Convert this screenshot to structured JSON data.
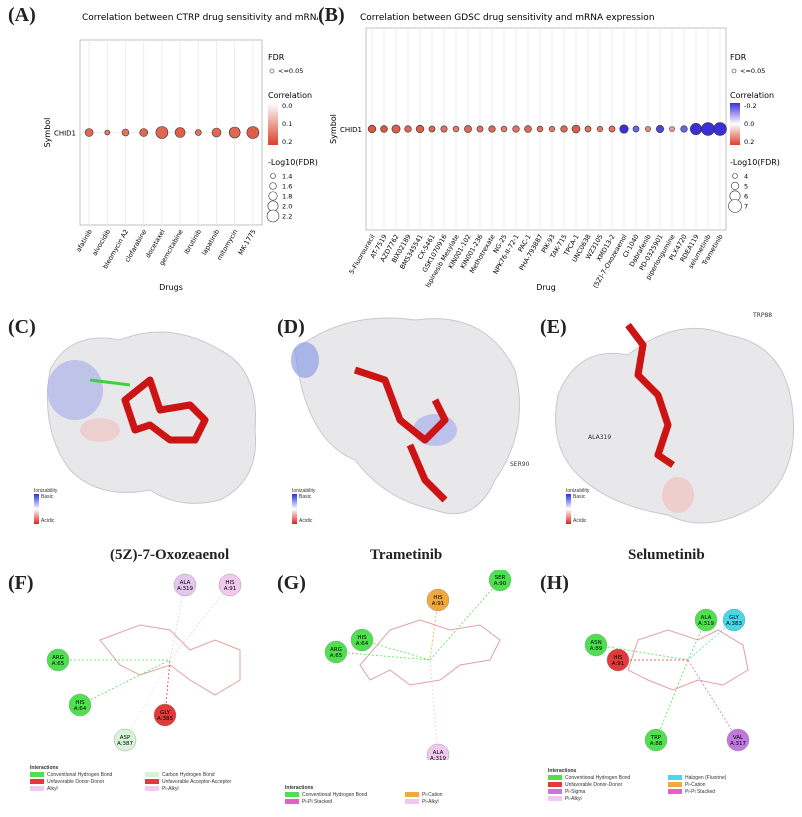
{
  "panels": {
    "A": "(A)",
    "B": "(B)",
    "C": "(C)",
    "D": "(D)",
    "E": "(E)",
    "F": "(F)",
    "G": "(G)",
    "H": "(H)"
  },
  "chart_data": [
    {
      "type": "scatter",
      "title": "Correlation between CTRP drug sensitivity and mRNA expression",
      "xlabel": "Drugs",
      "ylabel": "Symbol",
      "y_categories": [
        "CHID1"
      ],
      "categories": [
        "afatinib",
        "alvocidib",
        "bleomycin A2",
        "clofarabine",
        "docetaxel",
        "gemcitabine",
        "ibrutinib",
        "lapatinib",
        "mitomycin",
        "MK-1775"
      ],
      "correlation": [
        0.16,
        0.14,
        0.15,
        0.16,
        0.16,
        0.17,
        0.15,
        0.16,
        0.16,
        0.17
      ],
      "neg_log10_fdr": [
        1.7,
        1.4,
        1.6,
        1.7,
        2.1,
        1.9,
        1.5,
        1.8,
        2.0,
        2.1
      ],
      "legend": {
        "fdr_title": "FDR",
        "fdr_label": "<=0.05",
        "corr_title": "Correlation",
        "corr_ticks": [
          "0.0",
          "0.1",
          "0.2"
        ],
        "size_title": "-Log10(FDR)",
        "size_ticks": [
          "1.4",
          "1.6",
          "1.8",
          "2.0",
          "2.2"
        ]
      },
      "colors": {
        "low": "#ffffff",
        "high": "#d9412a"
      }
    },
    {
      "type": "scatter",
      "title": "Correlation between GDSC drug sensitivity and mRNA expression",
      "xlabel": "Drug",
      "ylabel": "Symbol",
      "y_categories": [
        "CHID1"
      ],
      "categories": [
        "5-Fluorouracil",
        "AT-7519",
        "AZD7762",
        "BIX02189",
        "BMS345541",
        "CX-5461",
        "GSK1070916",
        "Ispinesib Mesylate",
        "KIN001-102",
        "KIN001-236",
        "Methotrexate",
        "NG-25",
        "NPK76-II-72-1",
        "PAC-1",
        "PHA-793887",
        "PIK-93",
        "TAK-715",
        "TPCA-1",
        "UNC0638",
        "WZ3105",
        "XMD13-2",
        "(5Z)-7-Oxozeaenol",
        "CI-1040",
        "Dabrafenib",
        "PD-0325901",
        "piperlongumine",
        "PLX4720",
        "RDEA119",
        "selumetinib",
        "Trametinib"
      ],
      "correlation": [
        0.18,
        0.18,
        0.17,
        0.16,
        0.17,
        0.16,
        0.15,
        0.14,
        0.16,
        0.15,
        0.16,
        0.14,
        0.15,
        0.16,
        0.15,
        0.14,
        0.16,
        0.17,
        0.15,
        0.14,
        0.15,
        -0.2,
        -0.15,
        0.12,
        -0.18,
        0.1,
        -0.15,
        -0.2,
        -0.2,
        -0.2
      ],
      "neg_log10_fdr": [
        5.0,
        4.7,
        5.2,
        4.6,
        5.0,
        4.4,
        4.5,
        4.3,
        4.8,
        4.4,
        4.6,
        4.3,
        4.6,
        4.7,
        4.3,
        4.2,
        4.6,
        5.1,
        4.4,
        4.2,
        4.4,
        5.3,
        4.4,
        4.1,
        4.9,
        4.0,
        4.6,
        6.4,
        7.0,
        7.0
      ],
      "legend": {
        "fdr_title": "FDR",
        "fdr_label": "<=0.05",
        "corr_title": "Correlation",
        "corr_ticks": [
          "-0.2",
          "0.0",
          "0.2"
        ],
        "size_title": "-Log10(FDR)",
        "size_ticks": [
          "4",
          "5",
          "6",
          "7"
        ]
      },
      "colors": {
        "neg": "#3b2fd6",
        "mid": "#ffffff",
        "pos": "#d9412a"
      }
    }
  ],
  "molecules": {
    "C": {
      "caption": "(5Z)-7-Oxozeaenol",
      "residue_labels": [],
      "ion_title": "Ionizability",
      "ion_basic": "Basic",
      "ion_acidic": "Acidic"
    },
    "D": {
      "caption": "Trametinib",
      "residue_labels": [
        "SER90"
      ],
      "ion_title": "Ionizability",
      "ion_basic": "Basic",
      "ion_acidic": "Acidic"
    },
    "E": {
      "caption": "Selumetinib",
      "residue_labels": [
        "TRP88",
        "ALA319"
      ],
      "ion_title": "Ionizability",
      "ion_basic": "Basic",
      "ion_acidic": "Acidic"
    }
  },
  "interactions": {
    "F": {
      "residues": [
        {
          "name": "ALA A:319",
          "color": "#e3c7ef"
        },
        {
          "name": "HIS A:91",
          "color": "#f1c9ee"
        },
        {
          "name": "ARG A:65",
          "color": "#4fe04f"
        },
        {
          "name": "HIS A:64",
          "color": "#4fe04f"
        },
        {
          "name": "ASP A:387",
          "color": "#d8f4d8"
        },
        {
          "name": "GLY A:385",
          "color": "#e03a3a"
        }
      ],
      "legend_title": "Interactions",
      "legend": [
        {
          "label": "Conventional Hydrogen Bond",
          "color": "#4fe04f"
        },
        {
          "label": "Carbon Hydrogen Bond",
          "color": "#d8f4d8"
        },
        {
          "label": "Unfavorable Donor-Donor",
          "color": "#e03a3a"
        },
        {
          "label": "Unfavorable Acceptor-Acceptor",
          "color": "#e03a3a"
        },
        {
          "label": "Alkyl",
          "color": "#f1c9ee"
        },
        {
          "label": "Pi-Alkyl",
          "color": "#f1c9ee"
        }
      ]
    },
    "G": {
      "residues": [
        {
          "name": "SER A:90",
          "color": "#4fe04f"
        },
        {
          "name": "HIS A:91",
          "color": "#f0a93a"
        },
        {
          "name": "HIS A:64",
          "color": "#4fe04f"
        },
        {
          "name": "ARG A:65",
          "color": "#4fe04f"
        },
        {
          "name": "ALA A:319",
          "color": "#f1c9ee"
        }
      ],
      "legend_title": "Interactions",
      "legend": [
        {
          "label": "Conventional Hydrogen Bond",
          "color": "#4fe04f"
        },
        {
          "label": "Pi-Cation",
          "color": "#f0a93a"
        },
        {
          "label": "Pi-Pi Stacked",
          "color": "#e462c5"
        },
        {
          "label": "Pi-Alkyl",
          "color": "#f1c9ee"
        }
      ]
    },
    "H": {
      "residues": [
        {
          "name": "ALA A:319",
          "color": "#4fe04f"
        },
        {
          "name": "GLY A:383",
          "color": "#46d8e6"
        },
        {
          "name": "ASN A:89",
          "color": "#4fe04f"
        },
        {
          "name": "HIS A:91",
          "color": "#e03a3a"
        },
        {
          "name": "TRP A:88",
          "color": "#4fe04f"
        },
        {
          "name": "VAL A:317",
          "color": "#c178e0"
        }
      ],
      "legend_title": "Interactions",
      "legend": [
        {
          "label": "Conventional Hydrogen Bond",
          "color": "#4fe04f"
        },
        {
          "label": "Halogen (Fluorine)",
          "color": "#46d8e6"
        },
        {
          "label": "Unfavorable Donor-Donor",
          "color": "#e03a3a"
        },
        {
          "label": "Pi-Cation",
          "color": "#f0a93a"
        },
        {
          "label": "Pi-Sigma",
          "color": "#c178e0"
        },
        {
          "label": "Pi-Pi Stacked",
          "color": "#e462c5"
        },
        {
          "label": "Pi-Alkyl",
          "color": "#f1c9ee"
        }
      ]
    }
  }
}
